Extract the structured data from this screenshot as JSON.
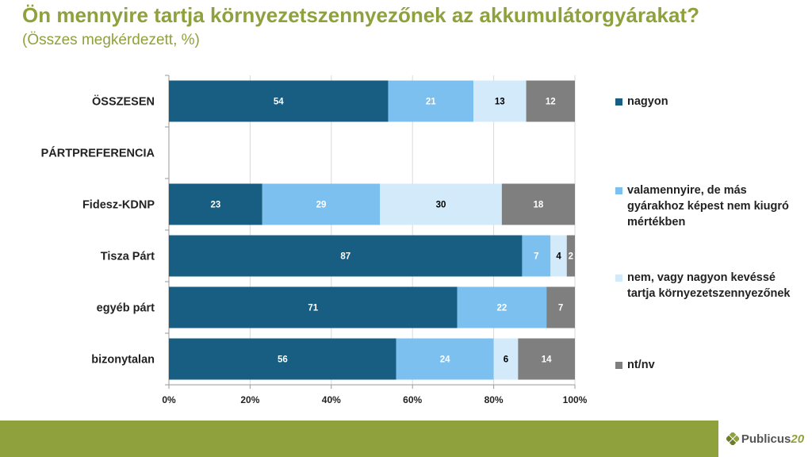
{
  "title": "Ön mennyire tartja környezetszennyezőnek az akkumulátorgyárakat?",
  "subtitle": "(Összes megkérdezett, %)",
  "logo": {
    "text": "Publicus",
    "number": "20"
  },
  "chart_data": {
    "type": "bar",
    "orientation": "horizontal",
    "stacked": true,
    "categories": [
      "ÖSSZESEN",
      "PÁRTPREFERENCIA",
      "Fidesz-KDNP",
      "Tisza Párt",
      "egyéb párt",
      "bizonytalan"
    ],
    "series": [
      {
        "name": "nagyon",
        "color": "#175E82",
        "label_color": "#ffffff",
        "values": [
          54,
          null,
          23,
          87,
          71,
          56
        ]
      },
      {
        "name": "valamennyire, de más gyárakhoz képest nem kiugró mértékben",
        "color": "#7CC0F0",
        "label_color": "#ffffff",
        "values": [
          21,
          null,
          29,
          7,
          22,
          24
        ]
      },
      {
        "name": "nem, vagy nagyon kevéssé tartja környezetszennyezőnek",
        "color": "#D3EAFA",
        "label_color": "#000000",
        "values": [
          13,
          null,
          30,
          4,
          null,
          6
        ]
      },
      {
        "name": "nt/nv",
        "color": "#7F7F7F",
        "label_color": "#ffffff",
        "values": [
          12,
          null,
          18,
          2,
          7,
          14
        ]
      }
    ],
    "xlim": [
      0,
      100
    ],
    "xticks": [
      "0%",
      "20%",
      "40%",
      "60%",
      "80%",
      "100%"
    ],
    "grid": true,
    "legend_position": "right"
  }
}
